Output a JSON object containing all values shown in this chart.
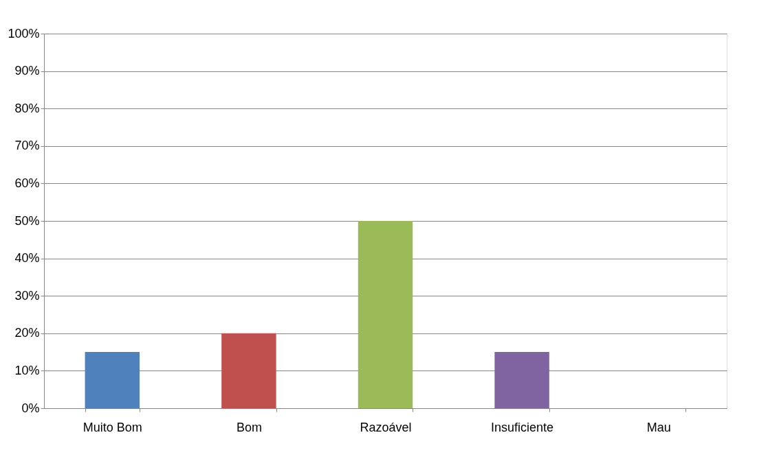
{
  "chart_data": {
    "type": "bar",
    "categories": [
      "Muito Bom",
      "Bom",
      "Razoável",
      "Insuficiente",
      "Mau"
    ],
    "values": [
      15,
      20,
      50,
      15,
      0
    ],
    "colors": [
      "#4f81bd",
      "#c0504d",
      "#9bbb59",
      "#8064a2",
      "#4bacc6"
    ],
    "ylim": [
      0,
      100
    ],
    "yticks": [
      {
        "value": 0,
        "label": "0%"
      },
      {
        "value": 10,
        "label": "10%"
      },
      {
        "value": 20,
        "label": "20%"
      },
      {
        "value": 30,
        "label": "30%"
      },
      {
        "value": 40,
        "label": "40%"
      },
      {
        "value": 50,
        "label": "50%"
      },
      {
        "value": 60,
        "label": "60%"
      },
      {
        "value": 70,
        "label": "70%"
      },
      {
        "value": 80,
        "label": "80%"
      },
      {
        "value": 90,
        "label": "90%"
      },
      {
        "value": 100,
        "label": "100%"
      }
    ],
    "grid": "y",
    "legend": false
  }
}
